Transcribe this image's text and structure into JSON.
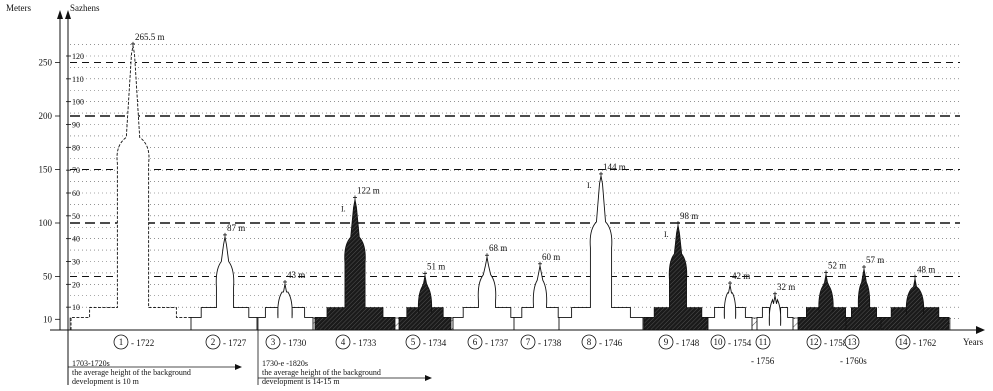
{
  "axes": {
    "left_unit": "Meters",
    "right_unit": "Sazhens",
    "x_unit": "Years",
    "meter_ticks": [
      {
        "label": "10",
        "value": 10
      },
      {
        "label": "50",
        "value": 50
      },
      {
        "label": "100",
        "value": 100
      },
      {
        "label": "150",
        "value": 150
      },
      {
        "label": "200",
        "value": 200
      },
      {
        "label": "250",
        "value": 250
      }
    ],
    "sazhen_ticks": [
      {
        "label": "10",
        "value": 10
      },
      {
        "label": "20",
        "value": 20
      },
      {
        "label": "30",
        "value": 30
      },
      {
        "label": "40",
        "value": 40
      },
      {
        "label": "50",
        "value": 50
      },
      {
        "label": "60",
        "value": 60
      },
      {
        "label": "70",
        "value": 70
      },
      {
        "label": "80",
        "value": 80
      },
      {
        "label": "90",
        "value": 90
      },
      {
        "label": "100",
        "value": 100
      },
      {
        "label": "110",
        "value": 110
      },
      {
        "label": "120",
        "value": 120
      }
    ]
  },
  "buildings": [
    {
      "num": "1",
      "year": "1722",
      "height_m": 265.5,
      "height_label": "265.5 m",
      "fill": "outline"
    },
    {
      "num": "2",
      "year": "1727",
      "height_m": 87,
      "height_label": "87 m",
      "fill": "outline"
    },
    {
      "num": "3",
      "year": "1730",
      "height_m": 43,
      "height_label": "43 m",
      "fill": "outline"
    },
    {
      "num": "4",
      "year": "1733",
      "height_m": 122,
      "height_label": "122 m",
      "fill": "dark"
    },
    {
      "num": "5",
      "year": "1734",
      "height_m": 51,
      "height_label": "51 m",
      "fill": "dark"
    },
    {
      "num": "6",
      "year": "1737",
      "height_m": 68,
      "height_label": "68 m",
      "fill": "outline"
    },
    {
      "num": "7",
      "year": "1738",
      "height_m": 60,
      "height_label": "60 m",
      "fill": "outline"
    },
    {
      "num": "8",
      "year": "1746",
      "height_m": 144,
      "height_label": "144 m",
      "fill": "outline"
    },
    {
      "num": "9",
      "year": "1748",
      "height_m": 98,
      "height_label": "98 m",
      "fill": "dark"
    },
    {
      "num": "10",
      "year": "1754",
      "height_m": 42,
      "height_label": "42 m",
      "fill": "outline"
    },
    {
      "num": "11",
      "year": "1756",
      "height_m": 32,
      "height_label": "32 m",
      "fill": "outline"
    },
    {
      "num": "12",
      "year": "1758",
      "height_m": 52,
      "height_label": "52 m",
      "fill": "dark"
    },
    {
      "num": "13",
      "year": "1760s",
      "height_m": 57,
      "height_label": "57 m",
      "fill": "dark"
    },
    {
      "num": "14",
      "year": "1762",
      "height_m": 48,
      "height_label": "48 m",
      "fill": "dark"
    }
  ],
  "periods": [
    {
      "range": "1703-1720s",
      "note_line1": "the average height of the background",
      "note_line2": "development is 10 m"
    },
    {
      "range": "1730-e -1820s",
      "note_line1": "the average height of the background",
      "note_line2": "development is 14-15 m"
    }
  ],
  "roman_mark": "I."
}
